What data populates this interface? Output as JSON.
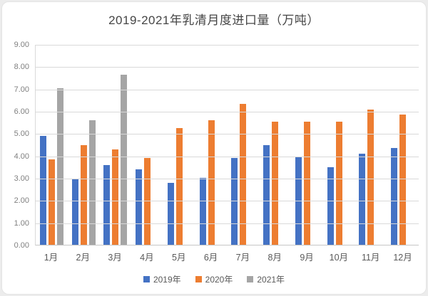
{
  "title": "2019-2021年乳清月度进口量（万吨）",
  "chart_data": {
    "type": "bar",
    "title": "2019-2021年乳清月度进口量（万吨）",
    "categories": [
      "1月",
      "2月",
      "3月",
      "4月",
      "5月",
      "6月",
      "7月",
      "8月",
      "9月",
      "10月",
      "11月",
      "12月"
    ],
    "series": [
      {
        "name": "2019年",
        "color": "#4472C4",
        "values": [
          4.9,
          2.95,
          3.6,
          3.4,
          2.8,
          3.0,
          3.9,
          4.5,
          3.95,
          3.5,
          4.1,
          4.35
        ]
      },
      {
        "name": "2020年",
        "color": "#ED7D31",
        "values": [
          3.85,
          4.5,
          4.3,
          3.9,
          5.25,
          5.6,
          6.35,
          5.55,
          5.55,
          5.55,
          6.1,
          5.85
        ]
      },
      {
        "name": "2021年",
        "color": "#A5A5A5",
        "values": [
          7.05,
          5.6,
          7.65,
          null,
          null,
          null,
          null,
          null,
          null,
          null,
          null,
          null
        ]
      }
    ],
    "ylim": [
      0,
      9
    ],
    "ytick_step": 1,
    "ytick_labels": [
      "9.00",
      "8.00",
      "7.00",
      "6.00",
      "5.00",
      "4.00",
      "3.00",
      "2.00",
      "1.00",
      "0.00"
    ],
    "xlabel": "",
    "ylabel": "",
    "grid": true,
    "legend_position": "bottom"
  },
  "colors": {
    "gridline": "#d9d9d9",
    "axis_line": "#c6c6c6",
    "ytick_text": "#7f7f7f",
    "xtick_text": "#595959",
    "title_text": "#454545",
    "legend_text": "#595959",
    "card_bg": "#ffffff",
    "page_bg": "#ececec"
  }
}
